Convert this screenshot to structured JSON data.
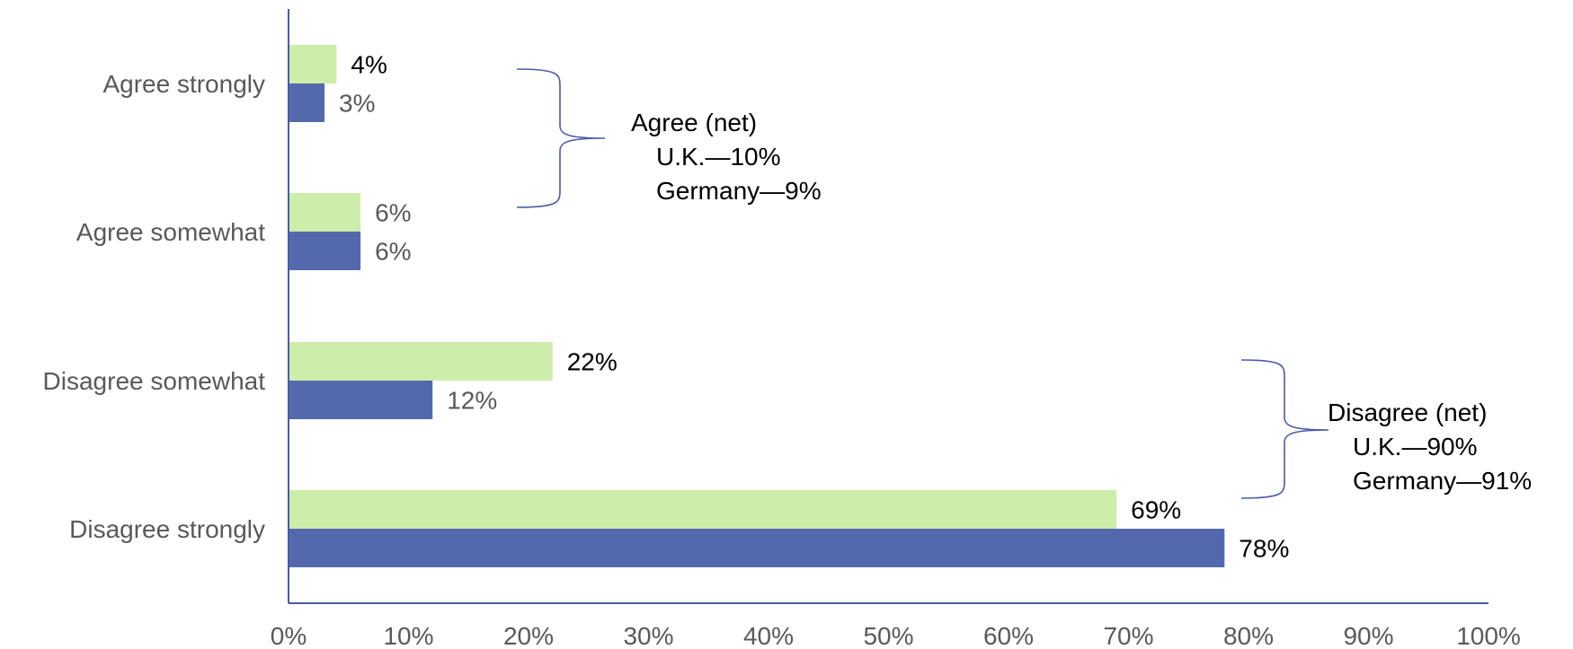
{
  "chart_data": {
    "type": "bar",
    "orientation": "horizontal",
    "categories": [
      "Agree strongly",
      "Agree somewhat",
      "Disagree somewhat",
      "Disagree strongly"
    ],
    "series": [
      {
        "color": "#cdedaa",
        "values": [
          4,
          6,
          22,
          69
        ],
        "labels": [
          "4%",
          "6%",
          "22%",
          "69%"
        ]
      },
      {
        "color": "#5469ad",
        "values": [
          3,
          6,
          12,
          78
        ],
        "labels": [
          "3%",
          "6%",
          "12%",
          "78%"
        ]
      }
    ],
    "xlim": [
      0,
      100
    ],
    "ticks": [
      0,
      10,
      20,
      30,
      40,
      50,
      60,
      70,
      80,
      90,
      100
    ],
    "tick_labels": [
      "0%",
      "10%",
      "20%",
      "30%",
      "40%",
      "50%",
      "60%",
      "70%",
      "80%",
      "90%",
      "100%"
    ],
    "grid": false,
    "annotations": [
      {
        "name": "agree-net",
        "spans": [
          0,
          1
        ],
        "lines": [
          "Agree (net)",
          "U.K.—10%",
          "Germany—9%"
        ]
      },
      {
        "name": "disagree-net",
        "spans": [
          2,
          3
        ],
        "lines": [
          "Disagree (net)",
          "U.K.—90%",
          "Germany—91%"
        ]
      }
    ],
    "colors": {
      "axis": "#4a5aa8",
      "bracket": "#4a5aa8",
      "category_text": "#595959",
      "data_label_light": "#595959",
      "data_label_dark": "#000000"
    }
  }
}
